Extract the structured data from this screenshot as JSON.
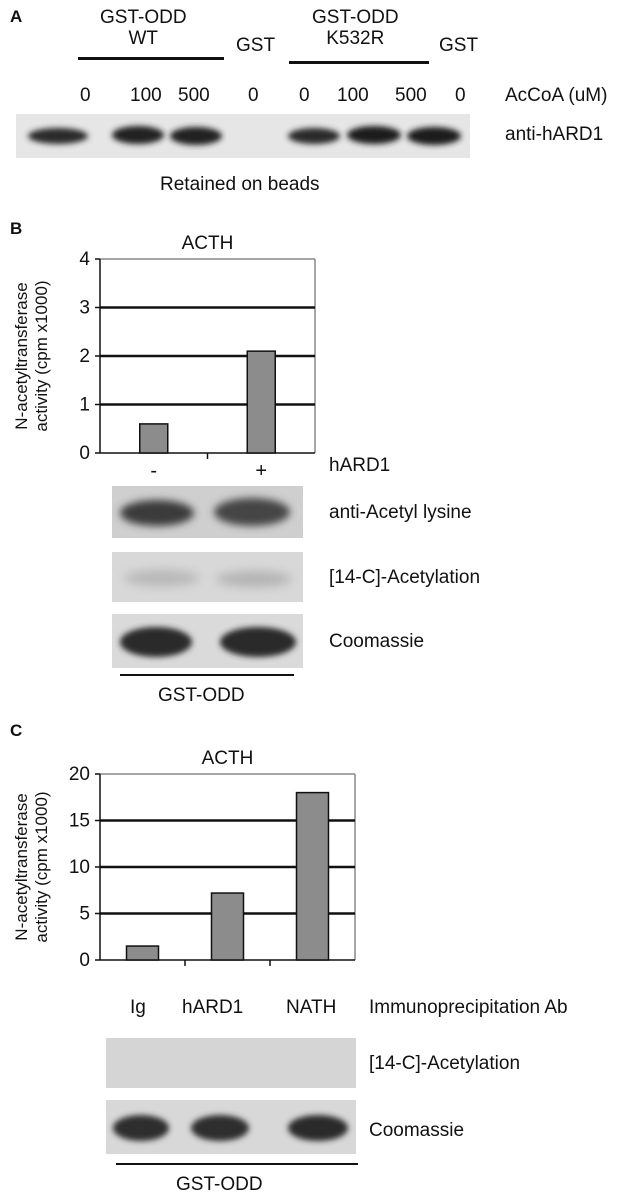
{
  "panel_a": {
    "letter": "A",
    "groups": [
      {
        "line1": "GST-ODD",
        "line2": "WT"
      },
      {
        "line1": "GST",
        "line2": ""
      },
      {
        "line1": "GST-ODD",
        "line2": "K532R"
      },
      {
        "line1": "GST",
        "line2": ""
      }
    ],
    "concentrations": [
      "0",
      "100",
      "500",
      "0",
      "0",
      "100",
      "500",
      "0"
    ],
    "concentration_label": "AcCoA (uM)",
    "blot_label": "anti-hARD1",
    "caption": "Retained on beads"
  },
  "panel_b": {
    "letter": "B",
    "chart_title": "ACTH",
    "ylabel_line1": "N-acetyltransferase",
    "ylabel_line2": "activity (cpm x1000)",
    "x_label": "hARD1",
    "blot_labels": [
      "anti-Acetyl lysine",
      "[14-C]-Acetylation",
      "Coomassie"
    ],
    "bottom_label": "GST-ODD"
  },
  "panel_c": {
    "letter": "C",
    "chart_title": "ACTH",
    "ylabel_line1": "N-acetyltransferase",
    "ylabel_line2": "activity (cpm x1000)",
    "lane_labels": [
      "Ig",
      "hARD1",
      "NATH"
    ],
    "lane_caption": "Immunoprecipitation Ab",
    "blot_labels": [
      "[14-C]-Acetylation",
      "Coomassie"
    ],
    "bottom_label": "GST-ODD"
  },
  "colors": {
    "bar": "#8c8c8c",
    "ink": "#111111"
  },
  "chart_data": [
    {
      "type": "bar",
      "title": "ACTH",
      "ylabel": "N-acetyltransferase activity (cpm x1000)",
      "xlabel": "hARD1",
      "categories": [
        "-",
        "+"
      ],
      "values": [
        0.6,
        2.1
      ],
      "ylim": [
        0,
        4
      ],
      "yticks": [
        0,
        1,
        2,
        3,
        4
      ],
      "grid": true
    },
    {
      "type": "bar",
      "title": "ACTH",
      "ylabel": "N-acetyltransferase activity (cpm x1000)",
      "xlabel": "",
      "categories": [
        "Ig",
        "hARD1",
        "NATH"
      ],
      "values": [
        1.5,
        7.2,
        18
      ],
      "ylim": [
        0,
        20
      ],
      "yticks": [
        0,
        5,
        10,
        15,
        20
      ],
      "grid": true
    }
  ]
}
